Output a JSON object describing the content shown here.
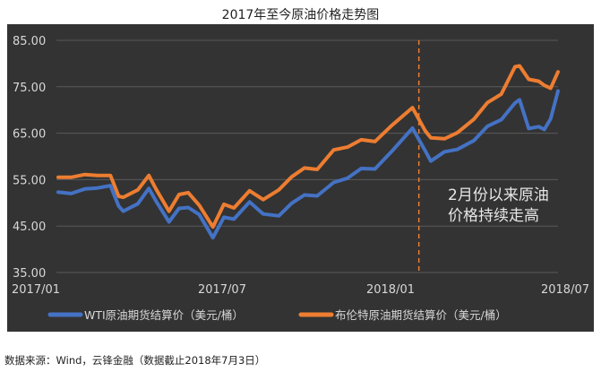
{
  "chart_data": {
    "type": "line",
    "title": "2017年至今原油价格走势图",
    "xlabel": "",
    "ylabel": "",
    "ylim": [
      35,
      85
    ],
    "y_ticks": [
      "35.00",
      "45.00",
      "55.00",
      "65.00",
      "75.00",
      "85.00"
    ],
    "x_ticks": [
      "2017/01",
      "2017/07",
      "2018/01",
      "2018/07"
    ],
    "x_range": [
      "2017-01-01",
      "2018-07-03"
    ],
    "grid": true,
    "legend_position": "bottom",
    "marker_line": {
      "x": "2018-02-01",
      "style": "dashed",
      "color": "#ED7D31"
    },
    "annotation": [
      "2月份以来原油",
      "价格持续走高"
    ],
    "x": [
      "2017-01-03",
      "2017-01-17",
      "2017-02-01",
      "2017-02-15",
      "2017-03-01",
      "2017-03-10",
      "2017-03-15",
      "2017-03-31",
      "2017-04-12",
      "2017-04-20",
      "2017-05-04",
      "2017-05-15",
      "2017-05-25",
      "2017-06-06",
      "2017-06-21",
      "2017-07-03",
      "2017-07-14",
      "2017-07-31",
      "2017-08-15",
      "2017-09-01",
      "2017-09-15",
      "2017-09-29",
      "2017-10-13",
      "2017-10-31",
      "2017-11-15",
      "2017-11-30",
      "2017-12-15",
      "2018-01-02",
      "2018-01-25",
      "2018-02-08",
      "2018-02-14",
      "2018-03-01",
      "2018-03-15",
      "2018-04-02",
      "2018-04-17",
      "2018-05-02",
      "2018-05-17",
      "2018-05-22",
      "2018-06-01",
      "2018-06-12",
      "2018-06-18",
      "2018-06-25",
      "2018-07-03"
    ],
    "series": [
      {
        "name": "WTI原油期货结算价（美元/桶）",
        "color": "#4472C4",
        "values": [
          52.3,
          52.0,
          53.0,
          53.2,
          53.7,
          49.3,
          48.2,
          49.8,
          53.1,
          50.3,
          45.9,
          48.8,
          49.0,
          47.5,
          42.5,
          46.9,
          46.5,
          50.2,
          47.6,
          47.2,
          49.9,
          51.7,
          51.5,
          54.4,
          55.3,
          57.4,
          57.3,
          61.0,
          66.1,
          61.2,
          59.0,
          61.0,
          61.5,
          63.4,
          66.5,
          67.9,
          71.5,
          72.2,
          66.0,
          66.4,
          65.8,
          68.1,
          74.1
        ]
      },
      {
        "name": "布伦特原油期货结算价（美元/桶）",
        "color": "#ED7D31",
        "values": [
          55.5,
          55.5,
          56.1,
          55.9,
          55.9,
          51.4,
          51.2,
          52.8,
          55.9,
          52.9,
          48.2,
          51.8,
          52.2,
          49.5,
          44.8,
          49.7,
          48.9,
          52.6,
          50.7,
          52.8,
          55.6,
          57.5,
          57.2,
          61.4,
          62.0,
          63.6,
          63.2,
          66.6,
          70.5,
          65.5,
          64.0,
          63.8,
          65.1,
          68.0,
          71.6,
          73.4,
          79.3,
          79.5,
          76.6,
          76.2,
          75.3,
          74.7,
          78.2
        ]
      }
    ]
  },
  "source_note": "数据来源：Wind，云锋金融（数据截止2018年7月3日）",
  "colors": {
    "background": "#333333",
    "grid": "#5a5a5a",
    "text": "#d8d8d8"
  }
}
